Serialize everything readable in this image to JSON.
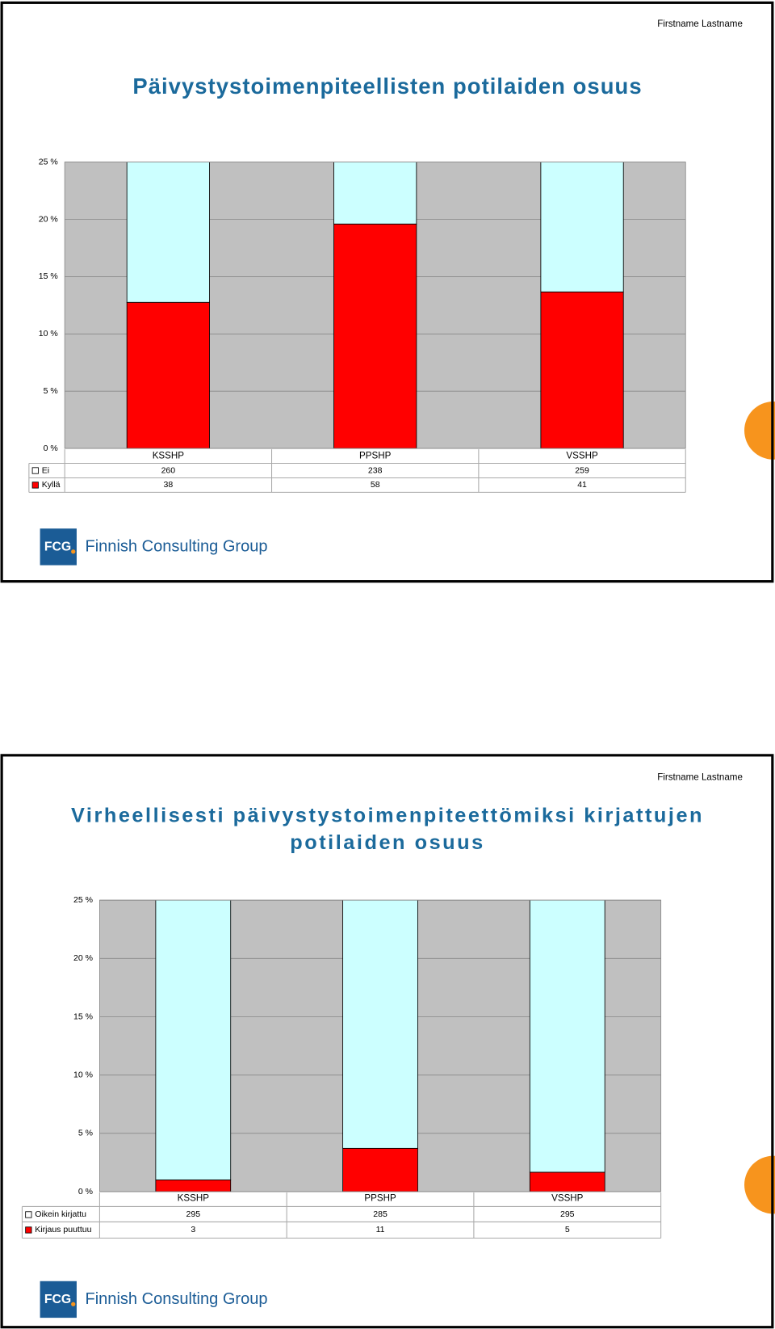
{
  "slides": [
    {
      "author": "Firstname Lastname",
      "title": [
        "Päivystystoimenpiteellisten potilaiden osuus"
      ],
      "chart_data": {
        "type": "bar",
        "stacking": "percent",
        "categories": [
          "KSSHP",
          "PPSHP",
          "VSSHP"
        ],
        "series": [
          {
            "name": "Ei",
            "color": "#ccffff",
            "values": [
              260,
              238,
              259
            ]
          },
          {
            "name": "Kyllä",
            "color": "#ff0000",
            "values": [
              38,
              58,
              41
            ]
          }
        ],
        "ylim": [
          0,
          25
        ],
        "yticks": [
          {
            "value": 0,
            "label": "0 %"
          },
          {
            "value": 5,
            "label": "5 %"
          },
          {
            "value": 10,
            "label": "10 %"
          },
          {
            "value": 15,
            "label": "15 %"
          },
          {
            "value": 20,
            "label": "20 %"
          },
          {
            "value": 25,
            "label": "25 %"
          }
        ],
        "grid": true
      },
      "logo": {
        "mark": "FCG",
        "name": "Finnish Consulting Group"
      }
    },
    {
      "author": "Firstname Lastname",
      "title": [
        "Virheellisesti päivystystoimenpiteettömiksi kirjattujen",
        "potilaiden osuus"
      ],
      "chart_data": {
        "type": "bar",
        "stacking": "percent",
        "categories": [
          "KSSHP",
          "PPSHP",
          "VSSHP"
        ],
        "series": [
          {
            "name": "Oikein kirjattu",
            "color": "#ccffff",
            "values": [
              295,
              285,
              295
            ]
          },
          {
            "name": "Kirjaus puuttuu",
            "color": "#ff0000",
            "values": [
              3,
              11,
              5
            ]
          }
        ],
        "ylim": [
          0,
          25
        ],
        "yticks": [
          {
            "value": 0,
            "label": "0 %"
          },
          {
            "value": 5,
            "label": "5 %"
          },
          {
            "value": 10,
            "label": "10 %"
          },
          {
            "value": 15,
            "label": "15 %"
          },
          {
            "value": 20,
            "label": "20 %"
          },
          {
            "value": 25,
            "label": "25 %"
          }
        ],
        "grid": true
      },
      "logo": {
        "mark": "FCG",
        "name": "Finnish Consulting Group"
      }
    }
  ]
}
